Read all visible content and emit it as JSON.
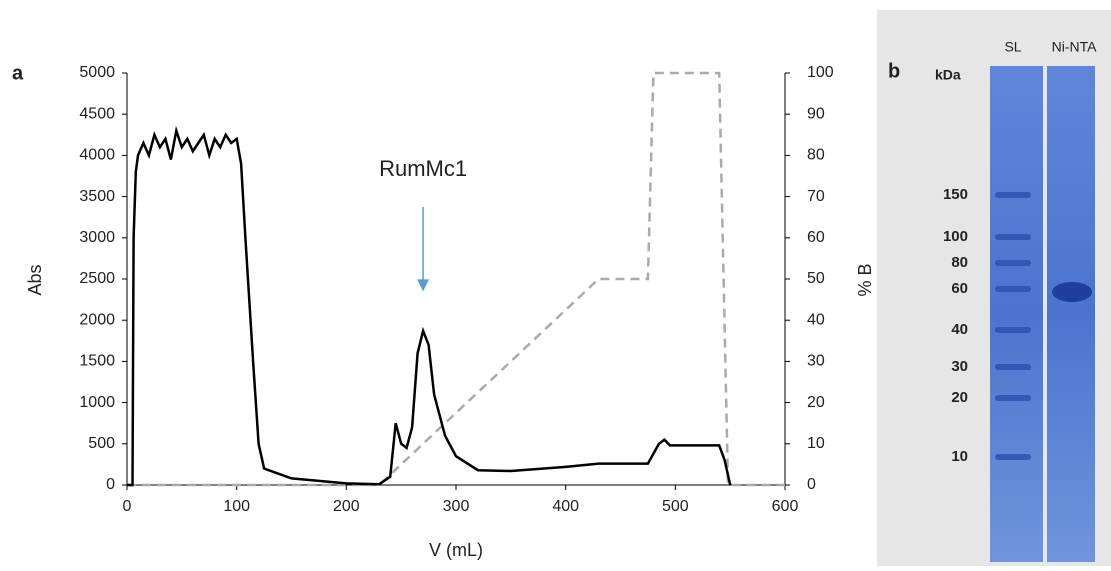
{
  "chart_data": {
    "type": "line",
    "panel_label": "a",
    "xlabel": "V (mL)",
    "ylabel": "Abs",
    "y2label": "% B",
    "xlim": [
      0,
      600
    ],
    "xticks": [
      0,
      100,
      200,
      300,
      400,
      500,
      600
    ],
    "ylim": [
      0,
      5000
    ],
    "yticks": [
      0,
      500,
      1000,
      1500,
      2000,
      2500,
      3000,
      3500,
      4000,
      4500,
      5000
    ],
    "y2lim": [
      0,
      100
    ],
    "y2ticks": [
      0,
      10,
      20,
      30,
      40,
      50,
      60,
      70,
      80,
      90,
      100
    ],
    "annotation": {
      "text": "RumMc1",
      "x": 270,
      "y": 2350
    },
    "series": [
      {
        "color": "#000000",
        "axis": "y",
        "x": [
          0,
          5,
          6,
          8,
          10,
          15,
          20,
          25,
          30,
          35,
          40,
          45,
          50,
          55,
          60,
          65,
          70,
          75,
          80,
          85,
          90,
          95,
          100,
          104,
          108,
          115,
          120,
          125,
          150,
          200,
          230,
          240,
          245,
          250,
          255,
          260,
          265,
          270,
          275,
          280,
          290,
          300,
          320,
          350,
          400,
          430,
          475,
          485,
          490,
          495,
          540,
          545,
          550
        ],
        "values": [
          0,
          0,
          3000,
          3800,
          4000,
          4150,
          4000,
          4250,
          4100,
          4200,
          3950,
          4300,
          4100,
          4200,
          4050,
          4150,
          4250,
          4000,
          4200,
          4100,
          4250,
          4150,
          4200,
          3900,
          3000,
          1500,
          500,
          200,
          80,
          20,
          10,
          100,
          750,
          500,
          450,
          700,
          1600,
          1870,
          1700,
          1100,
          600,
          350,
          180,
          170,
          220,
          260,
          260,
          500,
          550,
          480,
          480,
          300,
          0
        ]
      },
      {
        "color": "#aaaaaa",
        "axis": "y2",
        "dashed": true,
        "x": [
          0,
          230,
          430,
          475,
          480,
          540,
          548,
          600
        ],
        "values": [
          0,
          0,
          50,
          50,
          100,
          100,
          0,
          0
        ]
      }
    ]
  },
  "gel": {
    "panel_label": "b",
    "unit": "kDa",
    "lanes": [
      "SL",
      "Ni-NTA"
    ],
    "markers": [
      150,
      100,
      80,
      60,
      40,
      30,
      20,
      10
    ]
  }
}
